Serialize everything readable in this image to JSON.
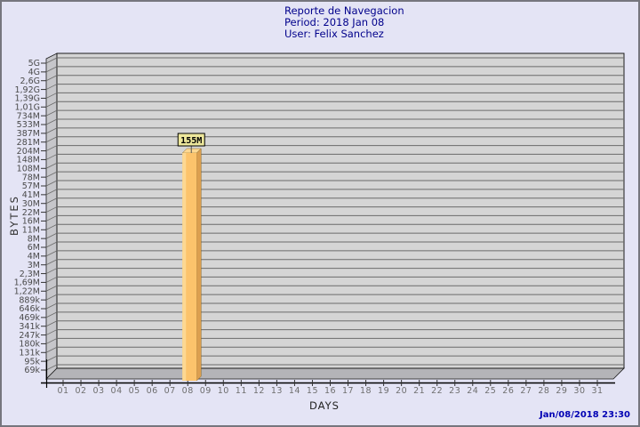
{
  "page": {
    "background": "#E4E4F5",
    "border_color": "#76767E"
  },
  "header": {
    "title": "Reporte de Navegacion",
    "period": "Period: 2018 Jan 08",
    "user": "User: Felix Sanchez",
    "color": "#00008B"
  },
  "footer": {
    "timestamp": "Jan/08/2018 23:30",
    "color": "#0000B4"
  },
  "chart_data": {
    "type": "bar",
    "title": "Reporte de Navegacion",
    "subtitle": "Period: 2018 Jan 08",
    "user": "User: Felix Sanchez",
    "xlabel": "DAYS",
    "ylabel": "BYTES",
    "scale": "logarithmic",
    "grid": "horizontal",
    "legend": "none",
    "ylim": [
      "69k",
      "5G"
    ],
    "categories": [
      "01",
      "02",
      "03",
      "04",
      "05",
      "06",
      "07",
      "08",
      "09",
      "10",
      "11",
      "12",
      "13",
      "14",
      "15",
      "16",
      "17",
      "18",
      "19",
      "20",
      "21",
      "22",
      "23",
      "24",
      "25",
      "26",
      "27",
      "28",
      "29",
      "30",
      "31"
    ],
    "y_tick_labels": [
      "5G",
      "4G",
      "2,6G",
      "1,92G",
      "1,39G",
      "1,01G",
      "734M",
      "533M",
      "387M",
      "281M",
      "204M",
      "148M",
      "108M",
      "78M",
      "57M",
      "41M",
      "30M",
      "22M",
      "16M",
      "11M",
      "8M",
      "6M",
      "4M",
      "3M",
      "2,3M",
      "1,69M",
      "1,22M",
      "889k",
      "646k",
      "469k",
      "341k",
      "247k",
      "180k",
      "131k",
      "95k",
      "69k"
    ],
    "bars": [
      {
        "category": "08",
        "label": "155M"
      }
    ],
    "colors": {
      "plot_bg": "#D5D5D5",
      "wall_side": "#C6C6CA",
      "floor": "#B4B4B8",
      "grid": "#6B6B6B",
      "outline": "#1A1A1A",
      "tick_text": "#4A4A4A",
      "day_text": "#6E6E6E",
      "bar": "#FCC36C",
      "bar_highlight": "#FDD892",
      "bar_top": "#FDD892",
      "bar_side": "#DC9F50",
      "bar_edge": "#8A6A28",
      "label_bg": "#EDE79B"
    }
  }
}
